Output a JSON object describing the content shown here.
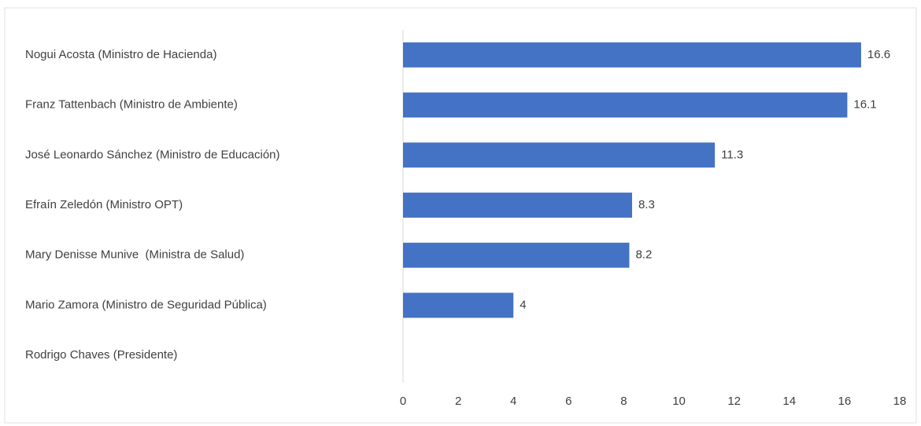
{
  "chart_data": {
    "type": "hbar",
    "categories": [
      "Nogui Acosta (Ministro de Hacienda)",
      "Franz Tattenbach (Ministro de Ambiente)",
      "José Leonardo Sánchez (Ministro de Educación)",
      "Efraín Zeledón (Ministro OPT)",
      "Mary Denisse Munive  (Ministra de Salud)",
      "Mario Zamora (Ministro de Seguridad Pública)",
      "Rodrigo Chaves (Presidente)"
    ],
    "values": [
      16.6,
      16.1,
      11.3,
      8.3,
      8.2,
      4,
      null
    ],
    "color": "#4472c4",
    "xlim": [
      0,
      18
    ],
    "xticks": [
      0,
      2,
      4,
      6,
      8,
      10,
      12,
      14,
      16,
      18
    ],
    "grid": false
  }
}
